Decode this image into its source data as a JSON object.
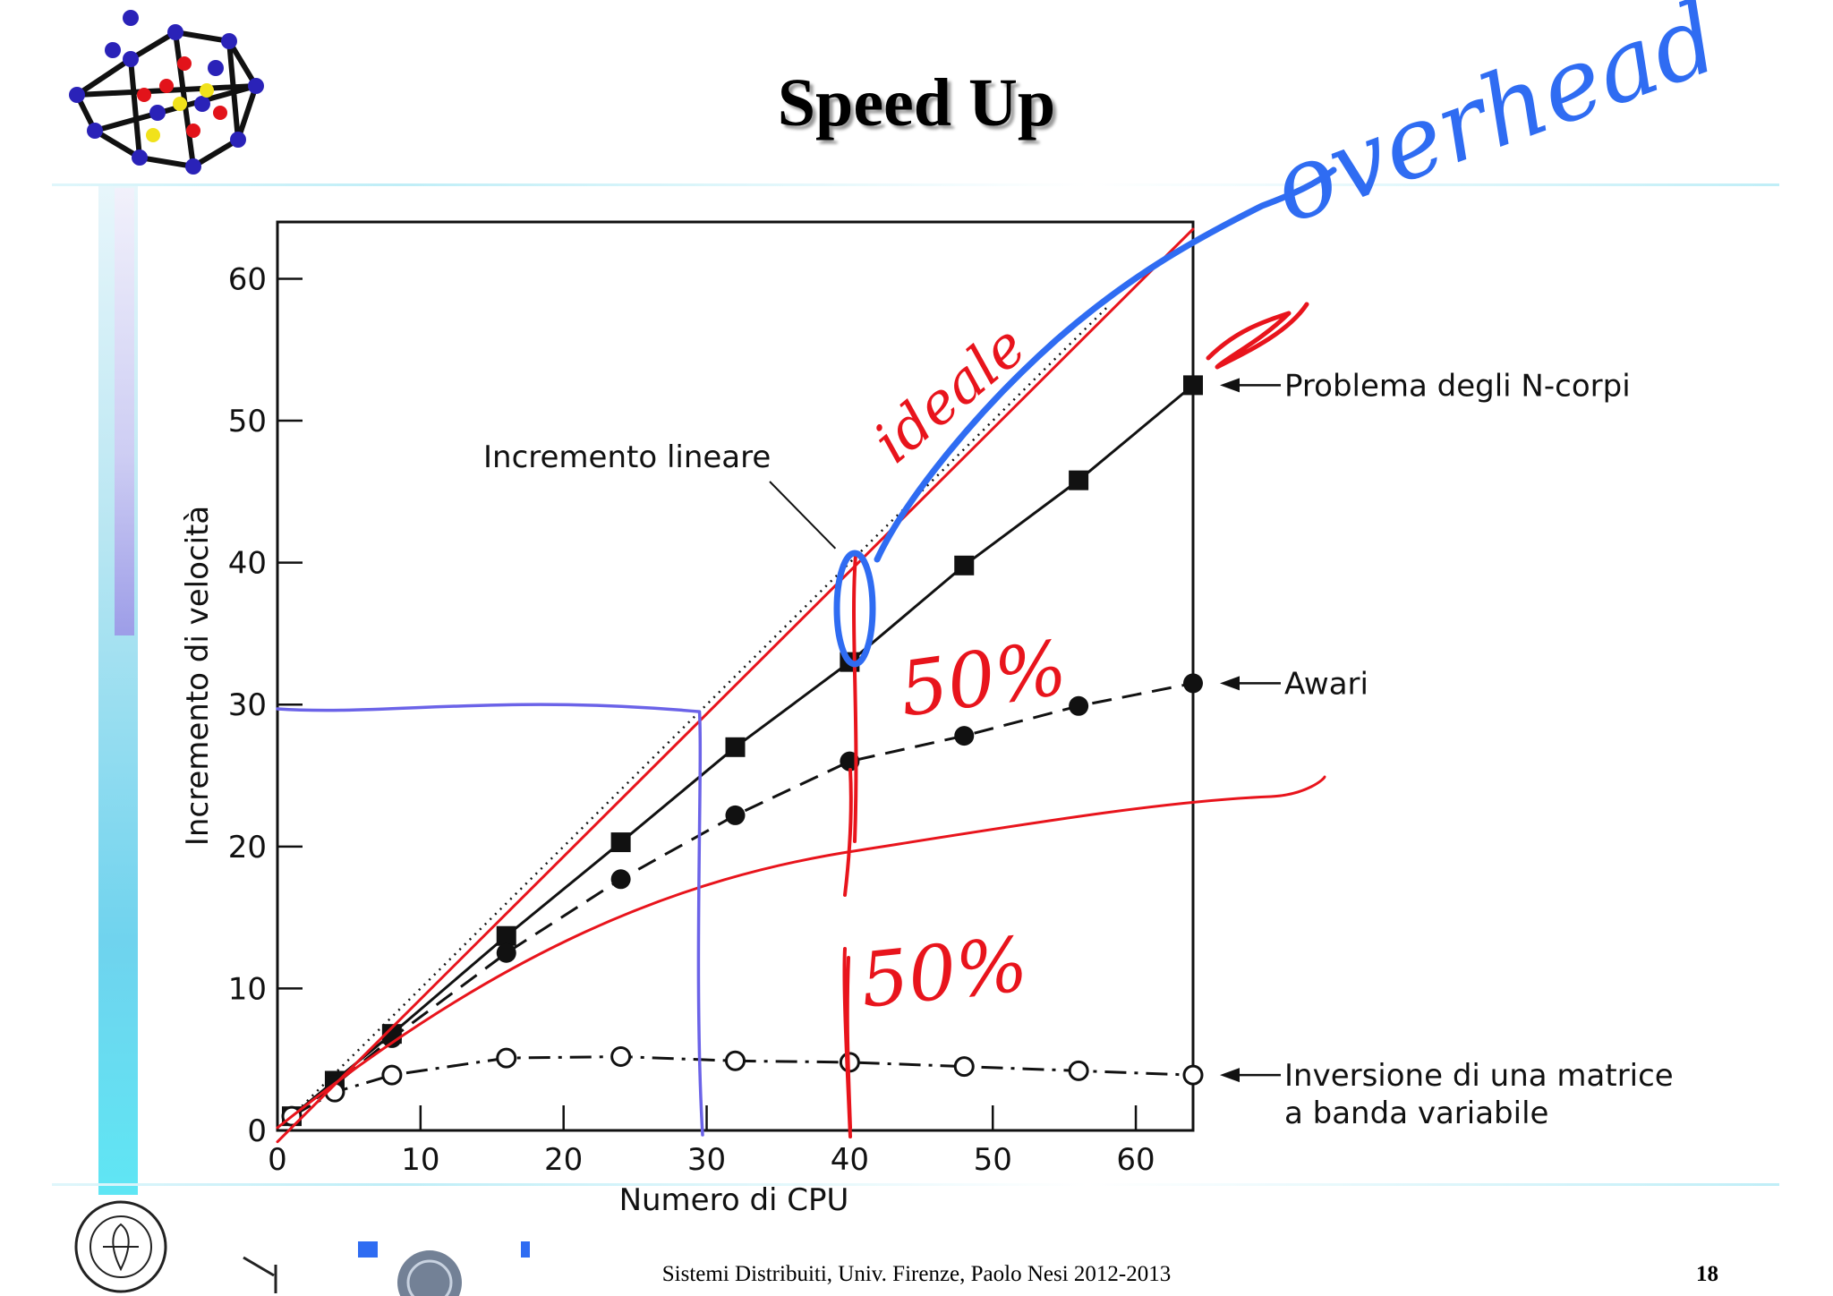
{
  "slide": {
    "title": "Speed Up",
    "footer": "Sistemi Distribuiti, Univ. Firenze, Paolo Nesi 2012-2013",
    "page_number": "18"
  },
  "colors": {
    "red_ink": "#e8141c",
    "blue_ink": "#2f6cf2",
    "violet_ink": "#6b63e8",
    "sidebar_cyan": "#5fe6f4"
  },
  "icons": [
    "molecule-logo-icon",
    "university-seal-icon",
    "department-logo-icon"
  ],
  "annotations": {
    "handwritten_ideal": "ideale",
    "handwritten_overhead": "overhead",
    "handwritten_50a": "50%",
    "handwritten_50b": "50%"
  },
  "chart_data": {
    "type": "line",
    "xlabel": "Numero di CPU",
    "ylabel": "Incremento di velocità",
    "xlim": [
      0,
      64
    ],
    "ylim": [
      0,
      64
    ],
    "xticks": [
      0,
      10,
      20,
      30,
      40,
      50,
      60
    ],
    "yticks": [
      0,
      10,
      20,
      30,
      40,
      50,
      60
    ],
    "grid": false,
    "series": [
      {
        "name": "Incremento lineare",
        "style": "dotted",
        "marker": "none",
        "x": [
          1,
          58
        ],
        "y": [
          1,
          58
        ]
      },
      {
        "name": "Problema degli N-corpi",
        "style": "solid",
        "marker": "filled-square",
        "x": [
          1,
          4,
          8,
          16,
          24,
          32,
          40,
          48,
          56,
          64
        ],
        "y": [
          1,
          3.5,
          6.8,
          13.7,
          20.3,
          27,
          33,
          39.8,
          45.8,
          52.5
        ]
      },
      {
        "name": "Awari",
        "style": "dashed",
        "marker": "filled-circle",
        "x": [
          1,
          4,
          8,
          16,
          24,
          32,
          40,
          48,
          56,
          64
        ],
        "y": [
          1,
          3.2,
          6.5,
          12.5,
          17.7,
          22.2,
          26,
          27.8,
          29.9,
          31.5
        ]
      },
      {
        "name": "Inversione di una matrice\na banda variabile",
        "style": "dash-dot",
        "marker": "open-circle",
        "x": [
          1,
          4,
          8,
          16,
          24,
          32,
          40,
          48,
          56,
          64
        ],
        "y": [
          1,
          2.7,
          3.9,
          5.1,
          5.2,
          4.9,
          4.8,
          4.5,
          4.2,
          3.9
        ]
      }
    ],
    "annotations": [
      {
        "text": "Incremento lineare",
        "arrow_to": [
          39,
          41
        ]
      },
      {
        "text": "Problema degli N-corpi",
        "target_series": 1
      },
      {
        "text": "Awari",
        "target_series": 2
      },
      {
        "text": "Inversione di una matrice",
        "text2": "a banda variabile",
        "target_series": 3
      }
    ]
  }
}
